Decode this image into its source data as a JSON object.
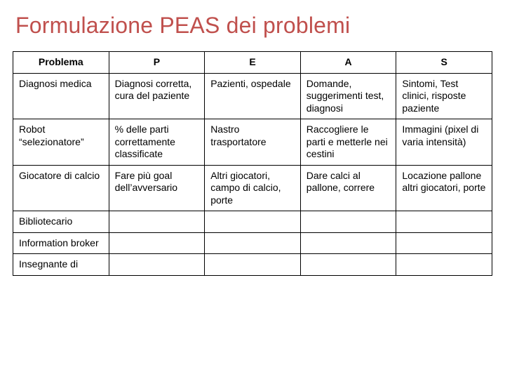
{
  "title": "Formulazione PEAS dei problemi",
  "colors": {
    "title": "#c0504d",
    "border": "#000000",
    "background": "#ffffff",
    "text": "#000000"
  },
  "typography": {
    "title_fontsize": 32,
    "cell_fontsize": 14,
    "font_family": "Arial"
  },
  "table": {
    "type": "table",
    "column_widths_pct": [
      20,
      20,
      20,
      20,
      20
    ],
    "columns": [
      "Problema",
      "P",
      "E",
      "A",
      "S"
    ],
    "rows": [
      [
        "Diagnosi medica",
        "Diagnosi corretta, cura del paziente",
        "Pazienti, ospedale",
        "Domande, suggerimenti test, diagnosi",
        "Sintomi, Test clinici, risposte paziente"
      ],
      [
        "Robot “selezionatore”",
        "% delle parti correttamente classificate",
        "Nastro trasportatore",
        "Raccogliere le parti e metterle nei cestini",
        "Immagini (pixel di varia intensità)"
      ],
      [
        "Giocatore di calcio",
        "Fare più goal dell’avversario",
        "Altri giocatori, campo di calcio, porte",
        "Dare calci al pallone, correre",
        "Locazione pallone altri giocatori, porte"
      ],
      [
        "Bibliotecario",
        "",
        "",
        "",
        ""
      ],
      [
        "Information broker",
        "",
        "",
        "",
        ""
      ],
      [
        "Insegnante di",
        "",
        "",
        "",
        ""
      ]
    ]
  }
}
